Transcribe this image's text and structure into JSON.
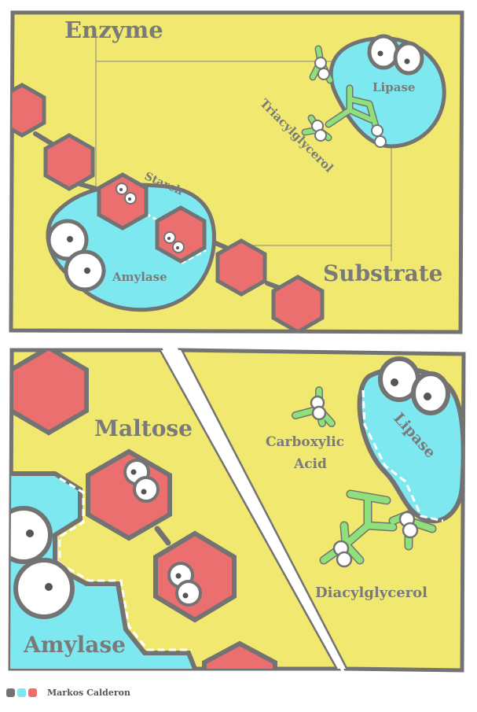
{
  "colors": {
    "background": "#f0e86f",
    "outline": "#737373",
    "enzyme": "#7de8f0",
    "starch": "#ec6f6f",
    "lipid": "#8ee07a",
    "eye": "#ffffff",
    "white": "#ffffff"
  },
  "panel_top": {
    "title_enzyme": "Enzyme",
    "title_substrate": "Substrate",
    "label_starch": "Starch",
    "label_amylase": "Amylase",
    "label_lipase": "Lipase",
    "label_triacylglycerol": "Triacylglycerol"
  },
  "panel_bottom_left": {
    "label_maltose": "Maltose",
    "label_amylase": "Amylase"
  },
  "panel_bottom_right": {
    "label_lipase": "Lipase",
    "label_carboxylic_1": "Carboxylic",
    "label_carboxylic_2": "Acid",
    "label_diacylglycerol": "Diacylglycerol"
  },
  "credit": {
    "name": "Markos Calderon",
    "swatches": [
      "#737373",
      "#7de8f0",
      "#ec6f6f"
    ]
  }
}
